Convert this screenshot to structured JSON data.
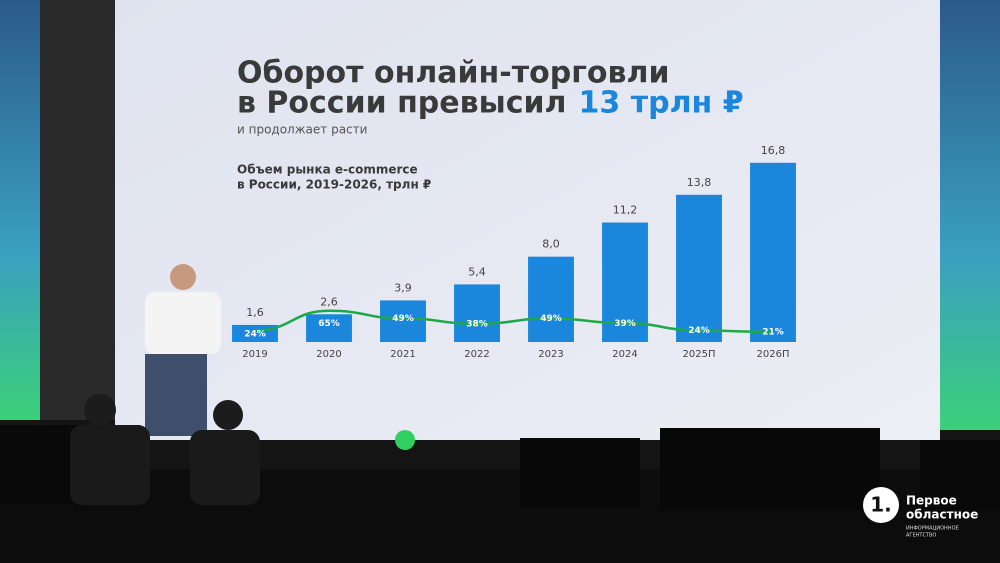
{
  "chart_data": {
    "type": "bar",
    "title": [
      "Оборот онлайн-торговли",
      "в России превысил"
    ],
    "title_highlight": "13 трлн ₽",
    "subtitle": "и продолжает расти",
    "y_label": [
      "Объем рынка e-commerce",
      "в России, 2019-2026, трлн ₽"
    ],
    "categories": [
      "2019",
      "2020",
      "2021",
      "2022",
      "2023",
      "2024",
      "2025П",
      "2026П"
    ],
    "ylim": [
      0,
      18
    ],
    "y2lim": [
      0,
      400
    ],
    "series": [
      {
        "type": "bar",
        "color": "#1a86dc",
        "values": [
          1.6,
          2.6,
          3.9,
          5.4,
          8.0,
          11.2,
          13.8,
          16.8
        ],
        "value_labels": [
          "1,6",
          "2,6",
          "3,9",
          "5,4",
          "8,0",
          "11,2",
          "13,8",
          "16,8"
        ]
      },
      {
        "type": "line",
        "axis": "y2",
        "color": "#1fa84a",
        "values": [
          24,
          65,
          49,
          38,
          49,
          39,
          24,
          21
        ],
        "value_labels": [
          "24%",
          "65%",
          "49%",
          "38%",
          "49%",
          "39%",
          "24%",
          "21%"
        ]
      }
    ]
  },
  "logo": {
    "mark": "1.",
    "lines": [
      "Первое",
      "областное"
    ],
    "tagline": [
      "ИНФОРМАЦИОННОЕ",
      "АГЕНТСТВО"
    ]
  }
}
